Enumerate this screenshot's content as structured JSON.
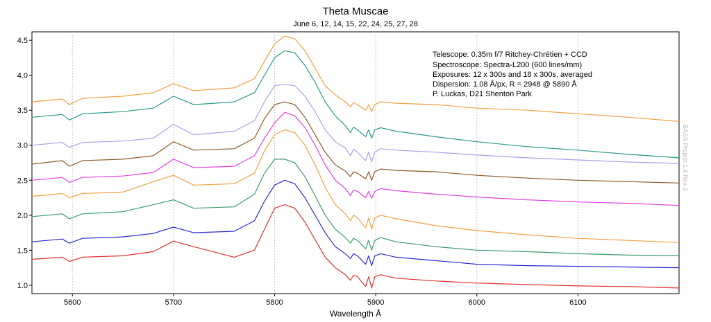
{
  "chart_data": {
    "type": "line",
    "title": "Theta Muscae",
    "subtitle": "June 6, 12, 14, 15, 22, 24, 25, 27, 28",
    "xlabel": "Wavelength Å",
    "ylabel": "",
    "xlim": [
      5560,
      6200
    ],
    "ylim": [
      0.88,
      4.62
    ],
    "x_ticks": [
      "5600",
      "5700",
      "5800",
      "5900",
      "6000",
      "6100"
    ],
    "y_ticks": [
      "1.0",
      "1.5",
      "2.0",
      "2.5",
      "3.0",
      "3.5",
      "4.0",
      "4.5"
    ],
    "grid": "vertical dashed",
    "annotations": [
      "Telescope: 0.35m f/7 Ritchey-Chrétien + CCD",
      "Spectroscope: Spectra-L200 (600 lines/mm)",
      "Exposures: 12 x 300s and 18 x 300s, averaged",
      "Dispersion: 1.08 Å/px, R = 2948 @ 5890 Å",
      "P. Luckas, D21 Shenton Park"
    ],
    "side_note": "BASS Project 1.4 Rev 3",
    "x": [
      5560,
      5590,
      5597,
      5610,
      5650,
      5680,
      5700,
      5720,
      5760,
      5780,
      5790,
      5800,
      5810,
      5820,
      5830,
      5840,
      5850,
      5860,
      5870,
      5875,
      5878,
      5882,
      5890,
      5893,
      5896,
      5899,
      5905,
      5920,
      5960,
      6000,
      6050,
      6100,
      6150,
      6200
    ],
    "series": [
      {
        "color": "#f0a040",
        "values": [
          3.62,
          3.66,
          3.58,
          3.67,
          3.7,
          3.75,
          3.88,
          3.78,
          3.82,
          3.95,
          4.2,
          4.45,
          4.56,
          4.52,
          4.35,
          4.1,
          3.85,
          3.72,
          3.62,
          3.55,
          3.61,
          3.58,
          3.5,
          3.58,
          3.48,
          3.58,
          3.62,
          3.6,
          3.58,
          3.53,
          3.5,
          3.45,
          3.4,
          3.34
        ]
      },
      {
        "color": "#2a9a8a",
        "values": [
          3.4,
          3.44,
          3.36,
          3.45,
          3.48,
          3.53,
          3.7,
          3.58,
          3.62,
          3.75,
          4.0,
          4.25,
          4.35,
          4.32,
          4.14,
          3.9,
          3.62,
          3.42,
          3.28,
          3.18,
          3.26,
          3.22,
          3.12,
          3.22,
          3.1,
          3.22,
          3.25,
          3.2,
          3.12,
          3.05,
          2.98,
          2.93,
          2.87,
          2.82
        ]
      },
      {
        "color": "#a7a0ea",
        "values": [
          3.0,
          3.04,
          2.97,
          3.04,
          3.06,
          3.1,
          3.3,
          3.15,
          3.2,
          3.35,
          3.62,
          3.85,
          3.87,
          3.85,
          3.7,
          3.48,
          3.22,
          3.05,
          2.96,
          2.85,
          2.94,
          2.9,
          2.78,
          2.9,
          2.76,
          2.9,
          2.95,
          2.93,
          2.9,
          2.86,
          2.82,
          2.79,
          2.76,
          2.74
        ]
      },
      {
        "color": "#8a5a2a",
        "values": [
          2.73,
          2.78,
          2.7,
          2.78,
          2.8,
          2.85,
          3.05,
          2.93,
          2.95,
          3.1,
          3.38,
          3.58,
          3.62,
          3.58,
          3.4,
          3.15,
          2.9,
          2.72,
          2.63,
          2.55,
          2.62,
          2.6,
          2.52,
          2.62,
          2.5,
          2.62,
          2.66,
          2.64,
          2.62,
          2.57,
          2.53,
          2.5,
          2.48,
          2.46
        ]
      },
      {
        "color": "#e040e0",
        "values": [
          2.5,
          2.54,
          2.47,
          2.54,
          2.56,
          2.61,
          2.8,
          2.68,
          2.7,
          2.85,
          3.1,
          3.32,
          3.47,
          3.42,
          3.25,
          3.0,
          2.72,
          2.5,
          2.38,
          2.28,
          2.36,
          2.34,
          2.25,
          2.34,
          2.24,
          2.34,
          2.38,
          2.35,
          2.3,
          2.26,
          2.22,
          2.19,
          2.17,
          2.14
        ]
      },
      {
        "color": "#f0a040",
        "values": [
          2.27,
          2.31,
          2.25,
          2.31,
          2.33,
          2.48,
          2.57,
          2.43,
          2.45,
          2.6,
          2.92,
          3.15,
          3.22,
          3.18,
          3.0,
          2.72,
          2.4,
          2.15,
          2.02,
          1.92,
          2.0,
          1.96,
          1.82,
          1.96,
          1.8,
          1.96,
          2.0,
          1.95,
          1.85,
          1.78,
          1.72,
          1.67,
          1.64,
          1.61
        ]
      },
      {
        "color": "#3a9a6a",
        "values": [
          1.98,
          2.02,
          1.95,
          2.02,
          2.05,
          2.15,
          2.22,
          2.1,
          2.12,
          2.3,
          2.6,
          2.8,
          2.8,
          2.75,
          2.55,
          2.28,
          2.0,
          1.8,
          1.68,
          1.6,
          1.67,
          1.64,
          1.52,
          1.64,
          1.5,
          1.64,
          1.68,
          1.62,
          1.55,
          1.5,
          1.48,
          1.45,
          1.43,
          1.42
        ]
      },
      {
        "color": "#2a2ad0",
        "values": [
          1.62,
          1.66,
          1.6,
          1.67,
          1.69,
          1.74,
          1.83,
          1.75,
          1.77,
          1.92,
          2.2,
          2.43,
          2.5,
          2.45,
          2.25,
          2.0,
          1.75,
          1.55,
          1.45,
          1.38,
          1.45,
          1.42,
          1.3,
          1.42,
          1.28,
          1.42,
          1.45,
          1.4,
          1.35,
          1.3,
          1.28,
          1.27,
          1.26,
          1.25
        ]
      },
      {
        "color": "#e03030",
        "values": [
          1.37,
          1.4,
          1.34,
          1.4,
          1.42,
          1.48,
          1.63,
          1.55,
          1.4,
          1.5,
          1.8,
          2.1,
          2.15,
          2.1,
          1.9,
          1.65,
          1.4,
          1.25,
          1.15,
          1.07,
          1.14,
          1.12,
          0.98,
          1.12,
          0.96,
          1.12,
          1.15,
          1.1,
          1.06,
          1.03,
          1.01,
          0.99,
          0.98,
          0.96
        ]
      }
    ]
  }
}
